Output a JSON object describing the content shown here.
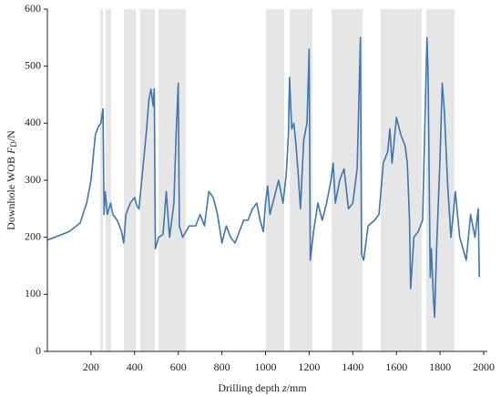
{
  "chart_data": {
    "type": "line",
    "x_label_parts": [
      "Drilling depth ",
      "z",
      "/mm"
    ],
    "y_label_parts": [
      "Downhole WOB ",
      "F",
      "D",
      "/N"
    ],
    "xlim": [
      0,
      2000
    ],
    "ylim": [
      0,
      600
    ],
    "xticks": [
      200,
      400,
      600,
      800,
      1000,
      1200,
      1400,
      1600,
      1800,
      2000
    ],
    "yticks": [
      0,
      100,
      200,
      300,
      400,
      500,
      600
    ],
    "shaded_regions": [
      [
        242,
        255
      ],
      [
        267,
        292
      ],
      [
        351,
        405
      ],
      [
        426,
        493
      ],
      [
        509,
        635
      ],
      [
        1002,
        1086
      ],
      [
        1111,
        1215
      ],
      [
        1303,
        1445
      ],
      [
        1528,
        1716
      ],
      [
        1737,
        1866
      ]
    ],
    "shade_color": "#e6e6e6",
    "series": [
      {
        "color": "#3d76b0",
        "x": [
          0,
          100,
          150,
          180,
          200,
          220,
          235,
          245,
          255,
          260,
          265,
          275,
          290,
          300,
          320,
          340,
          350,
          360,
          380,
          400,
          410,
          420,
          440,
          455,
          465,
          475,
          485,
          490,
          495,
          510,
          530,
          545,
          560,
          580,
          590,
          600,
          605,
          620,
          650,
          680,
          700,
          720,
          740,
          760,
          780,
          800,
          820,
          840,
          860,
          880,
          900,
          920,
          940,
          960,
          975,
          990,
          1000,
          1010,
          1020,
          1040,
          1060,
          1080,
          1095,
          1105,
          1110,
          1120,
          1130,
          1140,
          1150,
          1160,
          1175,
          1190,
          1200,
          1205,
          1220,
          1240,
          1260,
          1280,
          1300,
          1310,
          1320,
          1340,
          1360,
          1380,
          1400,
          1420,
          1435,
          1440,
          1450,
          1470,
          1500,
          1520,
          1540,
          1560,
          1570,
          1580,
          1600,
          1620,
          1640,
          1650,
          1660,
          1665,
          1680,
          1700,
          1720,
          1740,
          1745,
          1755,
          1760,
          1770,
          1775,
          1785,
          1800,
          1810,
          1820,
          1835,
          1850,
          1870,
          1890,
          1920,
          1940,
          1960,
          1975,
          1980
        ],
        "values": [
          195,
          210,
          225,
          260,
          300,
          380,
          395,
          400,
          425,
          240,
          280,
          240,
          260,
          240,
          230,
          210,
          190,
          240,
          260,
          270,
          255,
          250,
          330,
          390,
          440,
          460,
          430,
          460,
          180,
          200,
          205,
          280,
          200,
          260,
          380,
          470,
          220,
          200,
          220,
          220,
          240,
          220,
          280,
          270,
          240,
          190,
          220,
          200,
          190,
          210,
          230,
          230,
          250,
          260,
          230,
          210,
          260,
          290,
          240,
          270,
          300,
          260,
          310,
          380,
          480,
          390,
          400,
          360,
          310,
          250,
          370,
          400,
          530,
          160,
          210,
          260,
          230,
          260,
          300,
          330,
          260,
          300,
          320,
          250,
          260,
          320,
          550,
          170,
          160,
          220,
          230,
          240,
          330,
          350,
          390,
          330,
          410,
          380,
          360,
          330,
          230,
          110,
          200,
          210,
          230,
          550,
          490,
          130,
          180,
          90,
          60,
          190,
          340,
          470,
          420,
          290,
          200,
          280,
          200,
          160,
          240,
          200,
          250,
          130
        ]
      }
    ]
  }
}
